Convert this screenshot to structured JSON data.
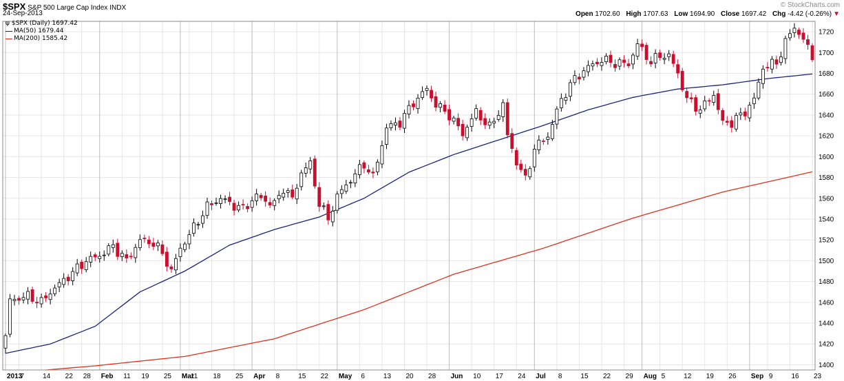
{
  "header": {
    "symbol": "$SPX",
    "name": "S&P 500 Large Cap Index",
    "exchange": "INDX",
    "date": "24-Sep-2013",
    "brand": "© StockCharts.com",
    "quote": {
      "open_label": "Open",
      "open": "1702.60",
      "high_label": "High",
      "high": "1707.63",
      "low_label": "Low",
      "low": "1694.90",
      "close_label": "Close",
      "close": "1697.42",
      "chg_label": "Chg",
      "chg": "-4.42 (-0.26%)",
      "chg_icon": "down-triangle-icon"
    }
  },
  "legend": [
    {
      "text": "$SPX (Daily) 1697.42",
      "icon": "candlestick-icon",
      "color": "#000000"
    },
    {
      "text": "MA(50) 1679.44",
      "color": "#1a237e"
    },
    {
      "text": "MA(200) 1585.42",
      "color": "#e0301e"
    }
  ],
  "chart_data": {
    "type": "candlestick",
    "ylim": [
      1395,
      1730
    ],
    "y_ticks": [
      1400,
      1420,
      1440,
      1460,
      1480,
      1500,
      1520,
      1540,
      1560,
      1580,
      1600,
      1620,
      1640,
      1660,
      1680,
      1700,
      1720
    ],
    "x_labels": [
      {
        "label": "2013",
        "major": true
      },
      {
        "label": "7"
      },
      {
        "label": "14"
      },
      {
        "label": "22"
      },
      {
        "label": "28"
      },
      {
        "label": "Feb",
        "major": true
      },
      {
        "label": "11"
      },
      {
        "label": "19"
      },
      {
        "label": "25"
      },
      {
        "label": "Mar",
        "major": true
      },
      {
        "label": "11"
      },
      {
        "label": "18"
      },
      {
        "label": "25"
      },
      {
        "label": "Apr",
        "major": true
      },
      {
        "label": "8"
      },
      {
        "label": "15"
      },
      {
        "label": "22"
      },
      {
        "label": "May",
        "major": true
      },
      {
        "label": "6"
      },
      {
        "label": "13"
      },
      {
        "label": "20"
      },
      {
        "label": "28"
      },
      {
        "label": "Jun",
        "major": true
      },
      {
        "label": "10"
      },
      {
        "label": "17"
      },
      {
        "label": "24"
      },
      {
        "label": "Jul",
        "major": true
      },
      {
        "label": "8"
      },
      {
        "label": "15"
      },
      {
        "label": "22"
      },
      {
        "label": "29"
      },
      {
        "label": "Aug",
        "major": true
      },
      {
        "label": "5"
      },
      {
        "label": "12"
      },
      {
        "label": "19"
      },
      {
        "label": "26"
      },
      {
        "label": "Sep",
        "major": true
      },
      {
        "label": "9"
      },
      {
        "label": "16"
      },
      {
        "label": "23"
      }
    ],
    "x_label_bars": [
      0,
      3,
      8,
      13,
      17,
      21,
      26,
      30,
      35,
      39,
      41,
      46,
      51,
      55,
      60,
      65,
      70,
      74,
      79,
      84,
      89,
      94,
      99,
      104,
      109,
      114,
      118,
      123,
      128,
      133,
      138,
      142,
      146,
      151,
      156,
      161,
      166,
      170,
      175,
      180
    ],
    "close_anchors": [
      [
        0,
        1426
      ],
      [
        1,
        1462
      ],
      [
        5,
        1466
      ],
      [
        8,
        1460
      ],
      [
        10,
        1470
      ],
      [
        14,
        1485
      ],
      [
        18,
        1500
      ],
      [
        21,
        1505
      ],
      [
        24,
        1514
      ],
      [
        27,
        1500
      ],
      [
        30,
        1520
      ],
      [
        33,
        1517
      ],
      [
        35,
        1507
      ],
      [
        37,
        1490
      ],
      [
        39,
        1512
      ],
      [
        41,
        1525
      ],
      [
        45,
        1552
      ],
      [
        48,
        1560
      ],
      [
        51,
        1553
      ],
      [
        53,
        1550
      ],
      [
        56,
        1562
      ],
      [
        60,
        1554
      ],
      [
        62,
        1570
      ],
      [
        64,
        1559
      ],
      [
        66,
        1585
      ],
      [
        68,
        1593
      ],
      [
        70,
        1555
      ],
      [
        72,
        1540
      ],
      [
        74,
        1562
      ],
      [
        77,
        1578
      ],
      [
        80,
        1593
      ],
      [
        82,
        1580
      ],
      [
        85,
        1628
      ],
      [
        88,
        1633
      ],
      [
        91,
        1652
      ],
      [
        94,
        1665
      ],
      [
        96,
        1650
      ],
      [
        99,
        1640
      ],
      [
        102,
        1622
      ],
      [
        105,
        1643
      ],
      [
        108,
        1628
      ],
      [
        111,
        1650
      ],
      [
        112,
        1620
      ],
      [
        114,
        1595
      ],
      [
        116,
        1578
      ],
      [
        118,
        1608
      ],
      [
        121,
        1620
      ],
      [
        124,
        1655
      ],
      [
        127,
        1675
      ],
      [
        130,
        1686
      ],
      [
        133,
        1693
      ],
      [
        136,
        1690
      ],
      [
        139,
        1689
      ],
      [
        141,
        1708
      ],
      [
        144,
        1691
      ],
      [
        146,
        1697
      ],
      [
        148,
        1697
      ],
      [
        150,
        1680
      ],
      [
        152,
        1655
      ],
      [
        155,
        1645
      ],
      [
        158,
        1660
      ],
      [
        160,
        1632
      ],
      [
        162,
        1633
      ],
      [
        165,
        1643
      ],
      [
        167,
        1655
      ],
      [
        169,
        1686
      ],
      [
        172,
        1690
      ],
      [
        174,
        1710
      ],
      [
        176,
        1725
      ],
      [
        178,
        1712
      ],
      [
        180,
        1697
      ]
    ],
    "series": [
      {
        "name": "$SPX (Daily)",
        "type": "candlestick",
        "last": 1697.42
      },
      {
        "name": "MA(50)",
        "type": "line",
        "color": "#1a237e",
        "last": 1679.44,
        "anchors": [
          [
            0,
            1411
          ],
          [
            10,
            1420
          ],
          [
            20,
            1437
          ],
          [
            30,
            1470
          ],
          [
            40,
            1490
          ],
          [
            50,
            1515
          ],
          [
            60,
            1530
          ],
          [
            70,
            1542
          ],
          [
            80,
            1560
          ],
          [
            90,
            1585
          ],
          [
            100,
            1602
          ],
          [
            110,
            1616
          ],
          [
            120,
            1630
          ],
          [
            130,
            1645
          ],
          [
            140,
            1657
          ],
          [
            150,
            1665
          ],
          [
            160,
            1669
          ],
          [
            170,
            1675
          ],
          [
            180,
            1679.44
          ]
        ]
      },
      {
        "name": "MA(200)",
        "type": "line",
        "color": "#e0301e",
        "last": 1585.42,
        "anchors": [
          [
            9,
            1395
          ],
          [
            20,
            1399
          ],
          [
            40,
            1408
          ],
          [
            60,
            1425
          ],
          [
            80,
            1453
          ],
          [
            100,
            1487
          ],
          [
            120,
            1512
          ],
          [
            140,
            1541
          ],
          [
            160,
            1566
          ],
          [
            180,
            1585.42
          ]
        ]
      }
    ]
  }
}
